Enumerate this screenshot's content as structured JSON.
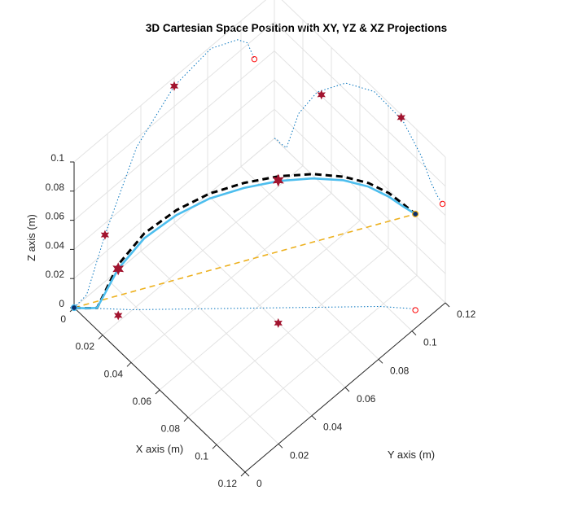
{
  "chart_data": {
    "type": "line",
    "title": "3D Cartesian Space Position with XY, YZ & XZ Projections",
    "xlabel": "X axis (m)",
    "ylabel": "Y axis (m)",
    "zlabel": "Z axis (m)",
    "xlim": [
      0,
      0.12
    ],
    "ylim": [
      0,
      0.12
    ],
    "zlim": [
      0,
      0.1
    ],
    "xticks": [
      "0",
      "0.02",
      "0.04",
      "0.06",
      "0.08",
      "0.1",
      "0.12"
    ],
    "yticks": [
      "0",
      "0.02",
      "0.04",
      "0.06",
      "0.08",
      "0.1",
      "0.12"
    ],
    "zticks": [
      "0",
      "0.02",
      "0.04",
      "0.06",
      "0.08",
      "0.1"
    ],
    "grid": true,
    "colors": {
      "trajectory": "#4DBEEE",
      "reference": "#000000",
      "straight_line": "#EDB120",
      "projection": "#0072BD",
      "waypoint": "#A2142F",
      "endpoint": "#FF0000"
    },
    "series": [
      {
        "x": [
          0,
          0.004,
          0.0085,
          0.0175,
          0.0275,
          0.0395,
          0.051,
          0.0625,
          0.0735,
          0.084,
          0.093,
          0.1,
          0.1055,
          0.1095,
          0.113
        ],
        "y": [
          0,
          0.003,
          0.0065,
          0.0115,
          0.0185,
          0.0275,
          0.0375,
          0.0485,
          0.06,
          0.0715,
          0.082,
          0.091,
          0.0985,
          0.104,
          0.108
        ],
        "z": [
          0,
          0.0005,
          0.0015,
          0.032,
          0.0555,
          0.074,
          0.0865,
          0.094,
          0.098,
          0.0985,
          0.0955,
          0.089,
          0.08,
          0.0715,
          0.066
        ]
      },
      {
        "x": [
          0,
          0.004,
          0.0085,
          0.017,
          0.027,
          0.039,
          0.0505,
          0.062,
          0.073,
          0.0835,
          0.0925,
          0.0995,
          0.105,
          0.1092,
          0.113
        ],
        "y": [
          0,
          0.003,
          0.0065,
          0.012,
          0.019,
          0.028,
          0.038,
          0.049,
          0.0605,
          0.072,
          0.0825,
          0.0915,
          0.099,
          0.1043,
          0.108
        ],
        "z": [
          0,
          0.0005,
          0.0015,
          0.034,
          0.058,
          0.0765,
          0.089,
          0.0965,
          0.1003,
          0.1005,
          0.097,
          0.0905,
          0.0815,
          0.0725,
          0.066
        ]
      },
      {
        "x": [
          0,
          0.113
        ],
        "y": [
          0,
          0.108
        ],
        "z": [
          0,
          0.066
        ]
      },
      {
        "x": [
          0,
          0.02,
          0.04,
          0.06,
          0.08,
          0.1,
          0.112
        ],
        "y": [
          0,
          0.018,
          0.038,
          0.058,
          0.078,
          0.098,
          0.108
        ],
        "z": [
          0,
          0,
          0,
          0,
          0,
          0,
          0
        ]
      },
      {
        "x": [
          0,
          0,
          0,
          0,
          0,
          0,
          0,
          0,
          0,
          0,
          0
        ],
        "y": [
          0,
          0.0075,
          0.0185,
          0.0375,
          0.06,
          0.082,
          0.098,
          0.104,
          0.1055,
          0.107,
          0.108
        ],
        "z": [
          0,
          0.0015,
          0.032,
          0.074,
          0.094,
          0.0985,
          0.089,
          0.081,
          0.075,
          0.07,
          0.066
        ]
      },
      {
        "x": [
          0,
          0.0015,
          0.004,
          0.0085,
          0.017,
          0.03,
          0.05,
          0.07,
          0.09,
          0.103,
          0.11,
          0.1145,
          0.118
        ],
        "y": [
          0.12,
          0.12,
          0.12,
          0.12,
          0.12,
          0.12,
          0.12,
          0.12,
          0.12,
          0.12,
          0.12,
          0.12,
          0.12
        ],
        "z": [
          0,
          0.001,
          0.0005,
          0.0015,
          0.033,
          0.06,
          0.085,
          0.098,
          0.097,
          0.085,
          0.073,
          0.068,
          0.066
        ]
      }
    ],
    "waypoints": [
      {
        "x": 0.0175,
        "y": 0.0115,
        "z": 0.032
      },
      {
        "x": 0.073,
        "y": 0.06,
        "z": 0.098
      },
      {
        "x": 0.0175,
        "y": 0.0115,
        "z": 0
      },
      {
        "x": 0.073,
        "y": 0.06,
        "z": 0
      },
      {
        "x": 0,
        "y": 0.0185,
        "z": 0.032
      },
      {
        "x": 0,
        "y": 0.06,
        "z": 0.094
      },
      {
        "x": 0.033,
        "y": 0.12,
        "z": 0.061
      },
      {
        "x": 0.089,
        "y": 0.12,
        "z": 0.098
      }
    ],
    "endpoints": [
      {
        "x": 0.113,
        "y": 0.108,
        "z": 0.066
      },
      {
        "x": 0.113,
        "y": 0.108,
        "z": 0
      },
      {
        "x": 0,
        "y": 0.108,
        "z": 0.066
      },
      {
        "x": 0.118,
        "y": 0.12,
        "z": 0.066
      }
    ]
  }
}
